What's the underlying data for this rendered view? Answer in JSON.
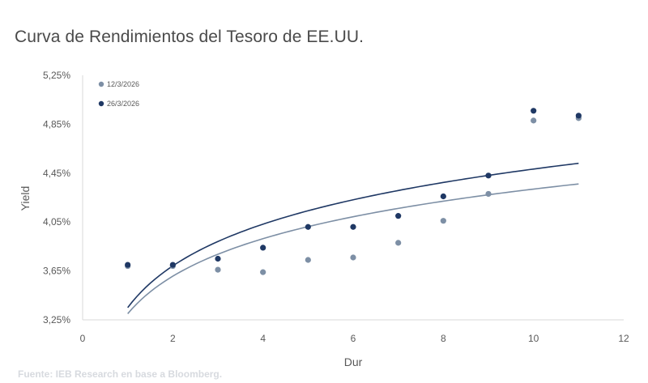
{
  "chart_data": {
    "type": "scatter",
    "title": "Curva de Rendimientos del Tesoro de EE.UU.",
    "source": "Fuente: IEB Research en base a Bloomberg.",
    "xlabel": "Dur",
    "ylabel": "Yield",
    "xlim": [
      0,
      12
    ],
    "ylim": [
      3.25,
      5.25
    ],
    "x_ticks": [
      0,
      2,
      4,
      6,
      8,
      10,
      12
    ],
    "x_tick_labels": [
      "0",
      "2",
      "4",
      "6",
      "8",
      "10",
      "12"
    ],
    "y_ticks": [
      3.25,
      3.65,
      4.05,
      4.45,
      4.85,
      5.25
    ],
    "y_tick_labels": [
      "3,25%",
      "3,65%",
      "4,05%",
      "4,45%",
      "4,85%",
      "5,25%"
    ],
    "grid": false,
    "legend_position": "top-left",
    "series": [
      {
        "name": "12/3/2026",
        "color": "#7d8fa5",
        "points": [
          {
            "x": 1,
            "y": 3.69
          },
          {
            "x": 2,
            "y": 3.69
          },
          {
            "x": 3,
            "y": 3.66
          },
          {
            "x": 4,
            "y": 3.64
          },
          {
            "x": 5,
            "y": 3.74
          },
          {
            "x": 6,
            "y": 3.76
          },
          {
            "x": 7,
            "y": 3.88
          },
          {
            "x": 8,
            "y": 4.06
          },
          {
            "x": 9,
            "y": 4.28
          },
          {
            "x": 10,
            "y": 4.88
          },
          {
            "x": 11,
            "y": 4.9
          }
        ],
        "trendline": {
          "type": "log",
          "a": 3.3,
          "b": 0.4427
        }
      },
      {
        "name": "26/3/2026",
        "color": "#1f3864",
        "points": [
          {
            "x": 1,
            "y": 3.7
          },
          {
            "x": 2,
            "y": 3.7
          },
          {
            "x": 3,
            "y": 3.75
          },
          {
            "x": 4,
            "y": 3.84
          },
          {
            "x": 5,
            "y": 4.01
          },
          {
            "x": 6,
            "y": 4.01
          },
          {
            "x": 7,
            "y": 4.1
          },
          {
            "x": 8,
            "y": 4.26
          },
          {
            "x": 9,
            "y": 4.43
          },
          {
            "x": 10,
            "y": 4.96
          },
          {
            "x": 11,
            "y": 4.92
          }
        ],
        "trendline": {
          "type": "log",
          "a": 3.35,
          "b": 0.4922
        }
      }
    ]
  }
}
